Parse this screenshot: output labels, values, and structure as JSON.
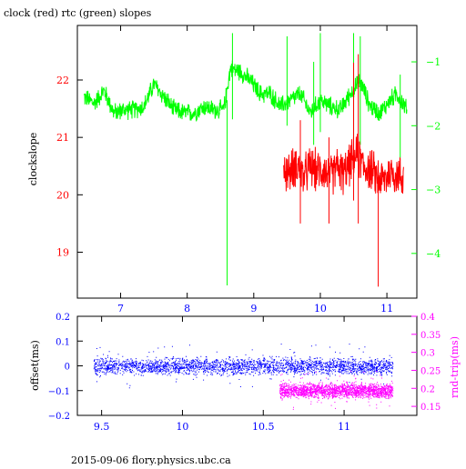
{
  "footer": "2015-09-06 flory.physics.ubc.ca",
  "colors": {
    "clock": "#ff0000",
    "rtc": "#00ff00",
    "offset": "#0000ff",
    "rndtrip": "#ff00ff",
    "axis": "#000000"
  },
  "chart_data": [
    {
      "type": "line",
      "title": "clock (red) rtc (green) slopes",
      "ylabel": "clockslope",
      "xlim": [
        6.35,
        11.45
      ],
      "ylim": [
        18.2,
        22.95
      ],
      "y2lim": [
        -4.7,
        -0.43
      ],
      "x_ticks": [
        7,
        8,
        9,
        10,
        11
      ],
      "y_ticks": [
        19,
        20,
        21,
        22
      ],
      "y2_ticks": [
        -1,
        -2,
        -3,
        -4
      ],
      "grid": false,
      "series": [
        {
          "name": "clock",
          "axis": "left",
          "color": "#ff0000",
          "x": [
            9.45,
            9.55,
            9.65,
            9.75,
            9.85,
            9.95,
            10.05,
            10.15,
            10.25,
            10.35,
            10.45,
            10.55,
            10.65,
            10.75,
            10.85,
            10.95,
            11.05,
            11.15,
            11.25
          ],
          "y": [
            20.45,
            20.4,
            20.55,
            20.3,
            20.5,
            20.4,
            20.45,
            20.3,
            20.5,
            20.35,
            20.55,
            20.7,
            20.5,
            20.45,
            20.3,
            20.25,
            20.4,
            20.35,
            20.3
          ],
          "spikes": [
            {
              "x": 9.7,
              "ymin": 19.5,
              "ymax": 21.3
            },
            {
              "x": 10.13,
              "ymin": 19.5,
              "ymax": 21.0
            },
            {
              "x": 10.5,
              "ymin": 19.9,
              "ymax": 22.3
            },
            {
              "x": 10.57,
              "ymin": 19.5,
              "ymax": 22.45
            },
            {
              "x": 10.87,
              "ymin": 18.4,
              "ymax": 20.6
            }
          ]
        },
        {
          "name": "rtc",
          "axis": "right",
          "color": "#00ff00",
          "x": [
            6.45,
            6.6,
            6.75,
            6.9,
            7.05,
            7.2,
            7.35,
            7.5,
            7.65,
            7.8,
            7.95,
            8.1,
            8.25,
            8.4,
            8.55,
            8.65,
            8.8,
            8.95,
            9.1,
            9.25,
            9.4,
            9.55,
            9.7,
            9.85,
            10.0,
            10.15,
            10.3,
            10.45,
            10.6,
            10.75,
            10.9,
            11.05,
            11.15,
            11.3
          ],
          "y": [
            -1.55,
            -1.65,
            -1.45,
            -1.8,
            -1.75,
            -1.75,
            -1.7,
            -1.35,
            -1.55,
            -1.75,
            -1.8,
            -1.8,
            -1.7,
            -1.75,
            -1.75,
            -1.1,
            -1.15,
            -1.3,
            -1.5,
            -1.5,
            -1.7,
            -1.6,
            -1.5,
            -1.8,
            -1.6,
            -1.7,
            -1.75,
            -1.5,
            -1.3,
            -1.7,
            -1.8,
            -1.6,
            -1.5,
            -1.75
          ],
          "spikes": [
            {
              "x": 8.6,
              "ymin": -4.5,
              "ymax": -1.6
            },
            {
              "x": 8.68,
              "ymin": -1.9,
              "ymax": -0.55
            },
            {
              "x": 9.5,
              "ymin": -2.0,
              "ymax": -0.6
            },
            {
              "x": 9.9,
              "ymin": -2.3,
              "ymax": -1.0
            },
            {
              "x": 10.0,
              "ymin": -2.1,
              "ymax": -0.55
            },
            {
              "x": 10.5,
              "ymin": -2.2,
              "ymax": -0.55
            },
            {
              "x": 10.6,
              "ymin": -2.3,
              "ymax": -0.6
            },
            {
              "x": 11.2,
              "ymin": -2.5,
              "ymax": -1.2
            }
          ]
        }
      ]
    },
    {
      "type": "scatter",
      "ylabel": "offset(ms)",
      "y2label": "rnd-trip(ms)",
      "xlim": [
        9.35,
        11.45
      ],
      "ylim": [
        -0.2,
        0.2
      ],
      "y2lim": [
        0.125,
        0.4
      ],
      "x_ticks": [
        9.5,
        10,
        10.5,
        11
      ],
      "y_ticks": [
        0.2,
        0.1,
        0,
        -0.1,
        -0.2
      ],
      "y2_ticks": [
        0.4,
        0.35,
        0.3,
        0.25,
        0.2,
        0.15
      ],
      "grid": false,
      "series": [
        {
          "name": "offset",
          "axis": "left",
          "color": "#0000ff",
          "x_range": [
            9.45,
            11.3
          ],
          "center": 0.0,
          "spread": 0.02
        },
        {
          "name": "rnd-trip",
          "axis": "right",
          "color": "#ff00ff",
          "x_range": [
            10.6,
            11.3
          ],
          "center": 0.195,
          "spread": 0.012
        }
      ]
    }
  ]
}
